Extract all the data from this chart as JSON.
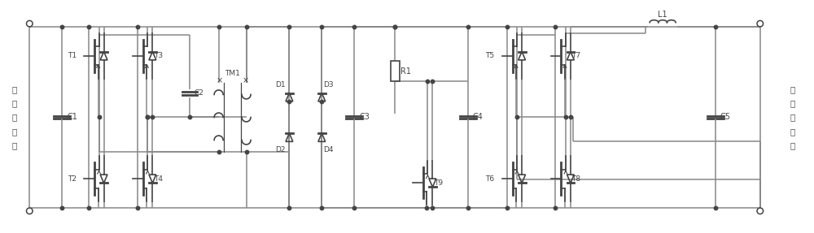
{
  "bg": "#ffffff",
  "wire_color": "#888888",
  "sym_color": "#444444",
  "text_color": "#444444",
  "green_color": "#006600",
  "dc_label": "直\n流\n输\n入\n端",
  "ac_label": "交\n流\n输\n出\n端",
  "labels": {
    "T1": "T1",
    "T2": "T2",
    "T3": "T3",
    "T4": "T4",
    "T5": "T5",
    "T6": "T6",
    "T7": "T7",
    "T8": "T8",
    "T9": "T9",
    "D1": "D1",
    "D2": "D2",
    "D3": "D3",
    "D4": "D4",
    "C1": "C1",
    "C2": "C2",
    "C3": "C3",
    "C4": "C4",
    "C5": "C5",
    "L1": "L1",
    "R1": "R1",
    "TM1": "TM1"
  }
}
